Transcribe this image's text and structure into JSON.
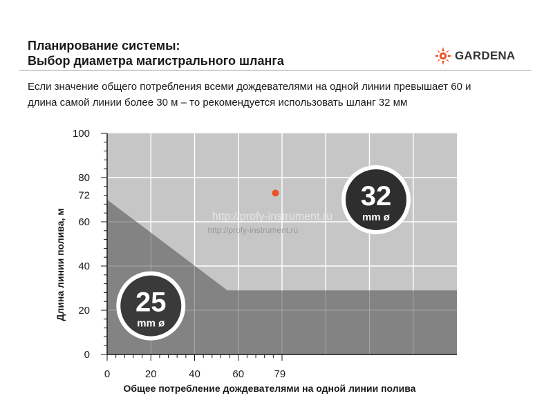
{
  "header": {
    "title_line1": "Планирование системы:",
    "title_line2": "Выбор диаметра магистрального шланга",
    "brand": "GARDENA"
  },
  "note": {
    "line1": "Если значение общего потребления всеми дождевателями на одной линии превышает 60 и",
    "line2": "длина самой линии более 30 м – то рекомендуется использовать шланг 32 мм"
  },
  "watermark": {
    "large": "http://profy-instrument.ru",
    "small": "http://profy-instrument.ru"
  },
  "chart_data": {
    "type": "area",
    "title": "",
    "xlabel": "Общее потребление дождевателями на одной линии полива",
    "ylabel": "Длина линии полива, м",
    "xlim": [
      0,
      160
    ],
    "ylim": [
      0,
      100
    ],
    "x_tick_labels": [
      "0",
      "20",
      "40",
      "60",
      "79"
    ],
    "x_tick_values": [
      0,
      20,
      40,
      60,
      79
    ],
    "y_tick_labels": [
      "0",
      "20",
      "40",
      "60",
      "72",
      "80",
      "100"
    ],
    "y_tick_values": [
      0,
      20,
      40,
      60,
      72,
      80,
      100
    ],
    "grid": true,
    "regions": [
      {
        "label_number": "25",
        "label_unit": "mm ø",
        "boundary": [
          [
            0,
            70
          ],
          [
            55,
            29
          ],
          [
            160,
            29
          ],
          [
            160,
            0
          ],
          [
            0,
            0
          ]
        ],
        "label_center": [
          20,
          22
        ],
        "color": "#7d7d7d"
      },
      {
        "label_number": "32",
        "label_unit": "mm ø",
        "label_center": [
          123,
          70
        ],
        "color": "#c6c6c6"
      }
    ],
    "points": [
      {
        "x": 77,
        "y": 73,
        "color": "#e8532a"
      }
    ]
  },
  "colors": {
    "accent": "#e8532a",
    "plot_light": "#c6c6c6",
    "plot_dark": "#7d7d7d",
    "grid": "#ffffff"
  }
}
